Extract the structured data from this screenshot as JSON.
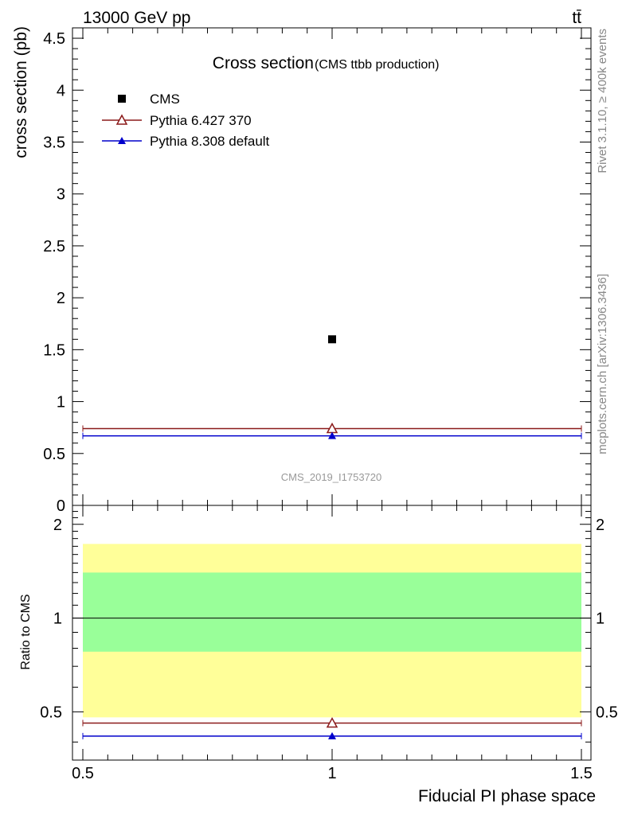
{
  "header": {
    "energy_label": "13000 GeV pp",
    "process_label": "tt̄",
    "side_text_top": "Rivet 3.1.10, ≥ 400k events",
    "side_text_bottom": "mcplots.cern.ch [arXiv:1306.3436]"
  },
  "chart_data": [
    {
      "type": "scatter",
      "panel": "main",
      "title": "Cross section",
      "subtitle": "(CMS ttbb production)",
      "ylabel": "cross section (pb)",
      "xlim": [
        0.5,
        1.5
      ],
      "ylim": [
        0,
        4.6
      ],
      "y_ticks": [
        0,
        0.5,
        1,
        1.5,
        2,
        2.5,
        3,
        3.5,
        4,
        4.5
      ],
      "y_tick_labels": [
        "0",
        "0.5",
        "1",
        "1.5",
        "2",
        "2.5",
        "3",
        "3.5",
        "4",
        "4.5"
      ],
      "legend_position": "top-left",
      "watermark": "CMS_2019_I1753720",
      "series": [
        {
          "name": "CMS",
          "color": "#000000",
          "marker": "square",
          "x": [
            1.0
          ],
          "y": [
            1.6
          ]
        },
        {
          "name": "Pythia 6.427 370",
          "color": "#8b1a1a",
          "marker": "open-triangle",
          "x": [
            1.0
          ],
          "y": [
            0.74
          ],
          "x_range": [
            0.5,
            1.5
          ],
          "y_err": [
            0.01
          ]
        },
        {
          "name": "Pythia 8.308 default",
          "color": "#0000cc",
          "marker": "filled-triangle",
          "x": [
            1.0
          ],
          "y": [
            0.67
          ],
          "x_range": [
            0.5,
            1.5
          ]
        }
      ]
    },
    {
      "type": "scatter",
      "panel": "ratio",
      "ylabel": "Ratio to CMS",
      "xlabel": "Fiducial PI phase space",
      "xlim": [
        0.5,
        1.5
      ],
      "ylim": [
        0.35,
        2.3
      ],
      "y_ticks": [
        0.5,
        1,
        2
      ],
      "y_tick_labels": [
        "0.5",
        "1",
        "2"
      ],
      "x_ticks": [
        0.5,
        1,
        1.5
      ],
      "x_tick_labels": [
        "0.5",
        "1",
        "1.5"
      ],
      "reference_line": 1.0,
      "bands": [
        {
          "name": "outer",
          "color": "#ffff99",
          "low": 0.48,
          "high": 1.73
        },
        {
          "name": "inner",
          "color": "#99ff99",
          "low": 0.78,
          "high": 1.4
        }
      ],
      "series": [
        {
          "name": "Pythia 6.427 370",
          "color": "#8b1a1a",
          "marker": "open-triangle",
          "x": [
            1.0
          ],
          "y": [
            0.46
          ],
          "x_range": [
            0.5,
            1.5
          ],
          "y_err": [
            0.01
          ]
        },
        {
          "name": "Pythia 8.308 default",
          "color": "#0000cc",
          "marker": "filled-triangle",
          "x": [
            1.0
          ],
          "y": [
            0.418
          ],
          "x_range": [
            0.5,
            1.5
          ]
        }
      ]
    }
  ]
}
